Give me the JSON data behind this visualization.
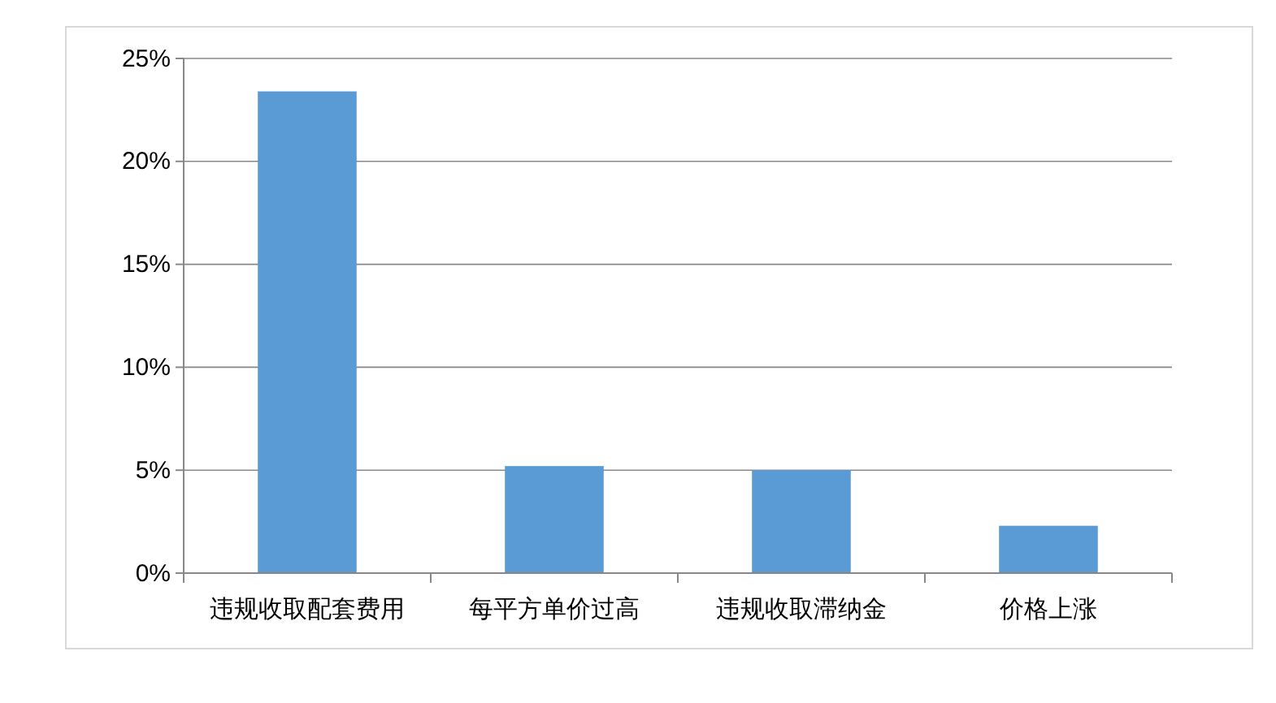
{
  "chart_data": {
    "type": "bar",
    "categories": [
      "违规收取配套费用",
      "每平方单价过高",
      "违规收取滞纳金",
      "价格上涨"
    ],
    "values": [
      23.4,
      5.2,
      5.0,
      2.3
    ],
    "color": "#5b9bd5",
    "ylim": [
      0,
      25
    ],
    "yticks": [
      {
        "value": 0,
        "label": "0%"
      },
      {
        "value": 5,
        "label": "5%"
      },
      {
        "value": 10,
        "label": "10%"
      },
      {
        "value": 15,
        "label": "15%"
      },
      {
        "value": 20,
        "label": "20%"
      },
      {
        "value": 25,
        "label": "25%"
      }
    ],
    "grid": "y"
  }
}
